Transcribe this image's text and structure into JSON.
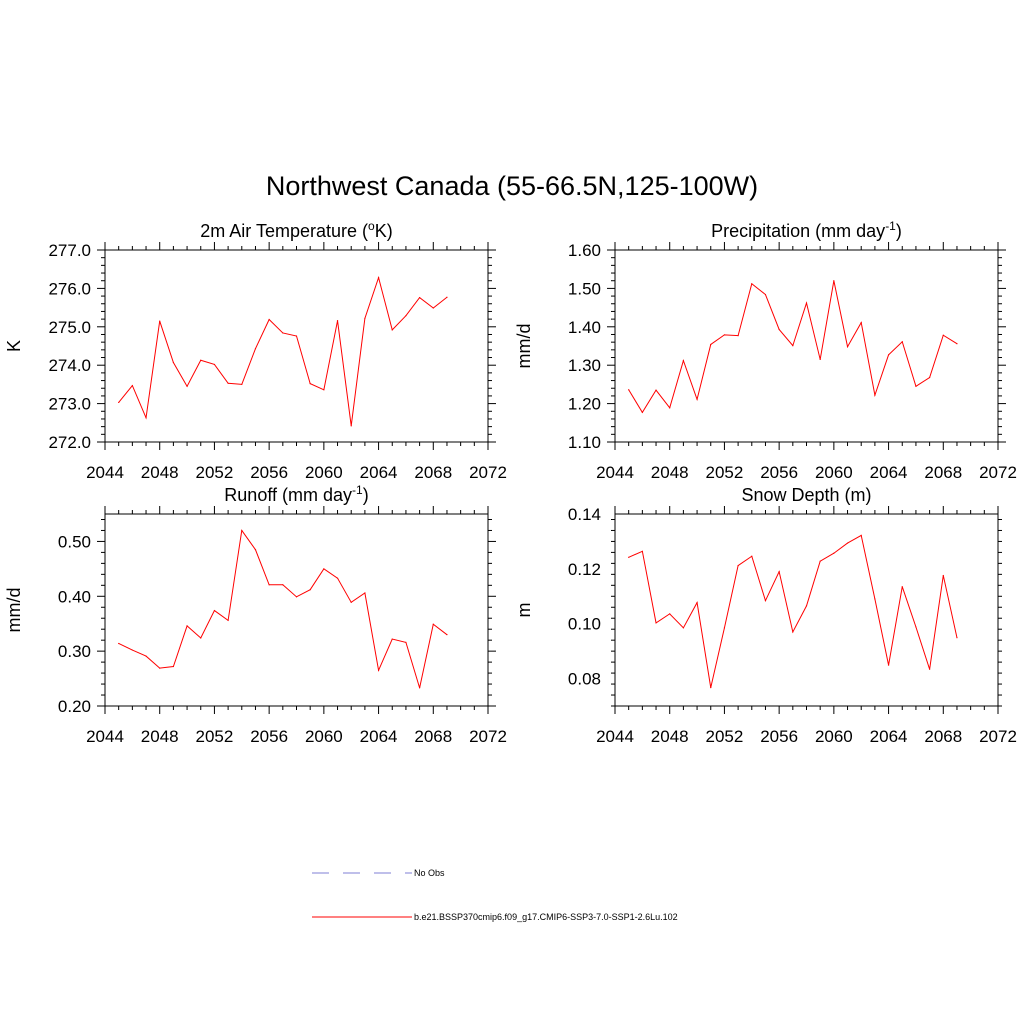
{
  "title": "Northwest Canada (55-66.5N,125-100W)",
  "colors": {
    "series": "#ff0000",
    "obs": "#9999dd",
    "axis": "#000000"
  },
  "legend": [
    {
      "label": "No Obs",
      "style": "dashed",
      "color": "#9999dd"
    },
    {
      "label": "b.e21.BSSP370cmip6.f09_g17.CMIP6-SSP3-7.0-SSP1-2.6Lu.102",
      "style": "solid",
      "color": "#ff0000"
    }
  ],
  "chart_data": [
    {
      "type": "line",
      "title": "2m Air Temperature",
      "title_unit_prefix": "(",
      "title_sup": "o",
      "title_unit_suffix": "K)",
      "ylabel": "K",
      "xlim": [
        2044,
        2072
      ],
      "ylim": [
        272.0,
        277.0
      ],
      "xticks": [
        2044,
        2048,
        2052,
        2056,
        2060,
        2064,
        2068,
        2072
      ],
      "yticks": [
        272.0,
        273.0,
        274.0,
        275.0,
        276.0,
        277.0
      ],
      "ytick_labels": [
        "272.0",
        "273.0",
        "274.0",
        "275.0",
        "276.0",
        "277.0"
      ],
      "series": [
        {
          "x": [
            2045,
            2046,
            2047,
            2048,
            2049,
            2050,
            2051,
            2052,
            2053,
            2054,
            2055,
            2056,
            2057,
            2058,
            2059,
            2060,
            2061,
            2062,
            2063,
            2064,
            2065,
            2066,
            2067,
            2068,
            2069
          ],
          "y": [
            273.03,
            273.47,
            272.63,
            275.15,
            274.07,
            273.45,
            274.13,
            274.02,
            273.53,
            273.5,
            274.43,
            275.19,
            274.84,
            274.76,
            273.52,
            273.36,
            275.16,
            272.42,
            275.22,
            276.28,
            274.92,
            275.29,
            275.76,
            275.49,
            275.77
          ]
        }
      ]
    },
    {
      "type": "line",
      "title": "Precipitation",
      "title_unit_prefix": "(mm day",
      "title_sup": "-1",
      "title_unit_suffix": ")",
      "ylabel": "mm/d",
      "xlim": [
        2044,
        2072
      ],
      "ylim": [
        1.1,
        1.6
      ],
      "xticks": [
        2044,
        2048,
        2052,
        2056,
        2060,
        2064,
        2068,
        2072
      ],
      "yticks": [
        1.1,
        1.2,
        1.3,
        1.4,
        1.5,
        1.6
      ],
      "ytick_labels": [
        "1.10",
        "1.20",
        "1.30",
        "1.40",
        "1.50",
        "1.60"
      ],
      "series": [
        {
          "x": [
            2045,
            2046,
            2047,
            2048,
            2049,
            2050,
            2051,
            2052,
            2053,
            2054,
            2055,
            2056,
            2057,
            2058,
            2059,
            2060,
            2061,
            2062,
            2063,
            2064,
            2065,
            2066,
            2067,
            2068,
            2069
          ],
          "y": [
            1.236,
            1.177,
            1.235,
            1.189,
            1.312,
            1.211,
            1.354,
            1.379,
            1.377,
            1.512,
            1.484,
            1.393,
            1.351,
            1.462,
            1.315,
            1.52,
            1.348,
            1.411,
            1.222,
            1.327,
            1.361,
            1.245,
            1.268,
            1.378,
            1.356
          ]
        }
      ]
    },
    {
      "type": "line",
      "title": "Runoff",
      "title_unit_prefix": "(mm day",
      "title_sup": "-1",
      "title_unit_suffix": ")",
      "ylabel": "mm/d",
      "xlim": [
        2044,
        2072
      ],
      "ylim": [
        0.2,
        0.55
      ],
      "xticks": [
        2044,
        2048,
        2052,
        2056,
        2060,
        2064,
        2068,
        2072
      ],
      "yticks": [
        0.2,
        0.3,
        0.4,
        0.5
      ],
      "ytick_labels": [
        "0.20",
        "0.30",
        "0.40",
        "0.50"
      ],
      "series": [
        {
          "x": [
            2045,
            2046,
            2047,
            2048,
            2049,
            2050,
            2051,
            2052,
            2053,
            2054,
            2055,
            2056,
            2057,
            2058,
            2059,
            2060,
            2061,
            2062,
            2063,
            2064,
            2065,
            2066,
            2067,
            2068,
            2069
          ],
          "y": [
            0.314,
            0.302,
            0.291,
            0.269,
            0.272,
            0.346,
            0.324,
            0.374,
            0.356,
            0.52,
            0.485,
            0.421,
            0.421,
            0.399,
            0.412,
            0.45,
            0.433,
            0.389,
            0.406,
            0.265,
            0.322,
            0.316,
            0.233,
            0.349,
            0.33
          ]
        }
      ]
    },
    {
      "type": "line",
      "title": "Snow Depth (m)",
      "title_unit_prefix": "",
      "title_sup": "",
      "title_unit_suffix": "",
      "ylabel": "m",
      "xlim": [
        2044,
        2072
      ],
      "ylim": [
        0.07,
        0.14
      ],
      "xticks": [
        2044,
        2048,
        2052,
        2056,
        2060,
        2064,
        2068,
        2072
      ],
      "yticks": [
        0.08,
        0.1,
        0.12,
        0.14
      ],
      "ytick_labels": [
        "0.08",
        "0.10",
        "0.12",
        "0.14"
      ],
      "series": [
        {
          "x": [
            2045,
            2046,
            2047,
            2048,
            2049,
            2050,
            2051,
            2052,
            2053,
            2054,
            2055,
            2056,
            2057,
            2058,
            2059,
            2060,
            2061,
            2062,
            2063,
            2064,
            2065,
            2066,
            2067,
            2068,
            2069
          ],
          "y": [
            0.1242,
            0.1264,
            0.1003,
            0.1036,
            0.0985,
            0.1077,
            0.0767,
            0.0985,
            0.1212,
            0.1246,
            0.1084,
            0.119,
            0.097,
            0.1065,
            0.1228,
            0.1257,
            0.1294,
            0.1322,
            0.109,
            0.0849,
            0.1135,
            0.0988,
            0.0834,
            0.1176,
            0.0949
          ]
        }
      ]
    }
  ]
}
